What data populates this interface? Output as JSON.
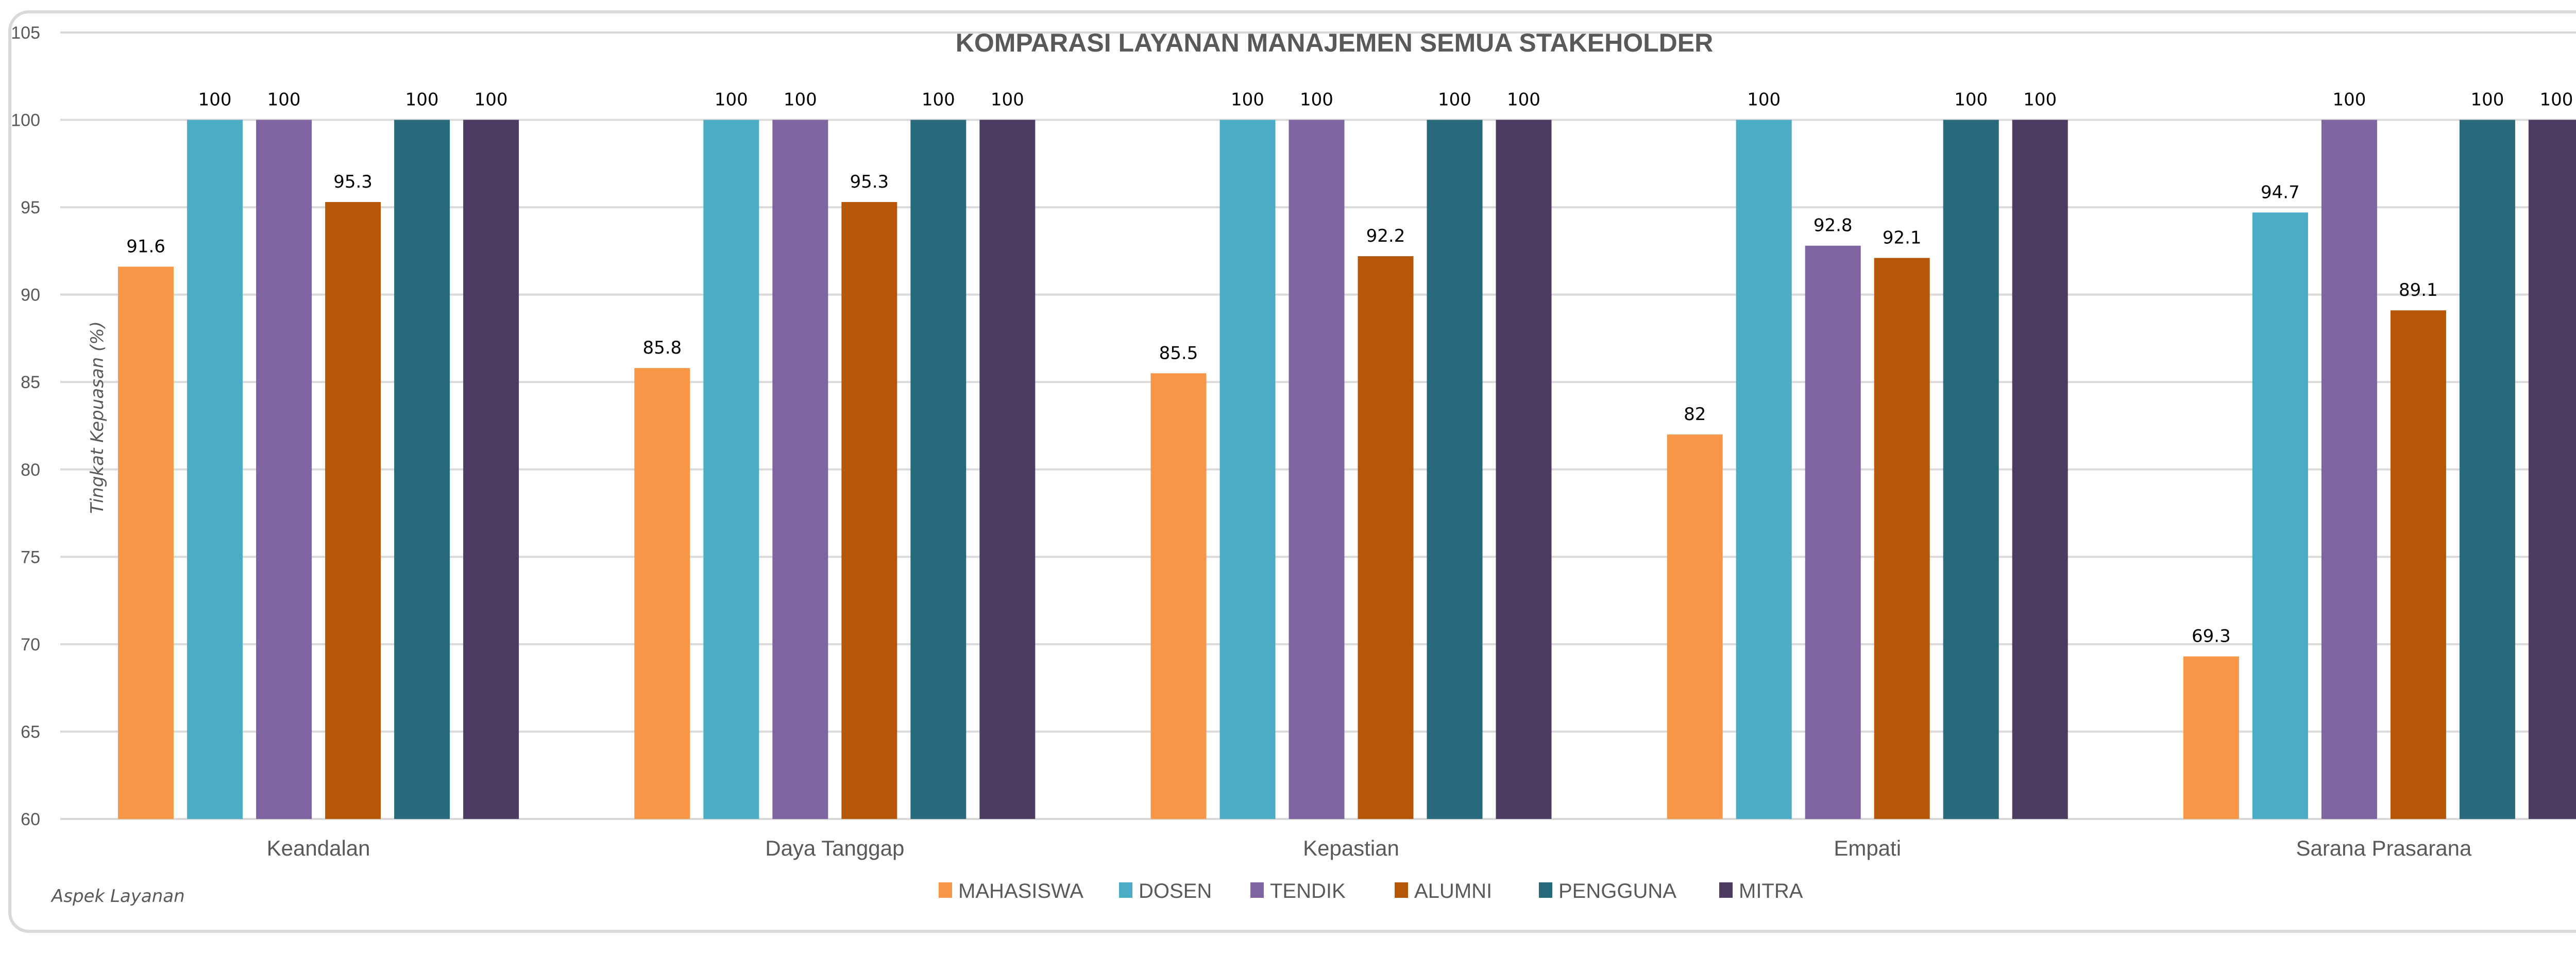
{
  "chart_data": {
    "type": "bar",
    "title": "KOMPARASI LAYANAN MANAJEMEN SEMUA STAKEHOLDER",
    "xlabel": "Aspek Layanan",
    "ylabel": "Tingkat Kepuasan (%)",
    "ylim": [
      60,
      105
    ],
    "yticks": [
      60,
      65,
      70,
      75,
      80,
      85,
      90,
      95,
      100,
      105
    ],
    "grid": true,
    "legend_position": "bottom",
    "categories": [
      "Keandalan",
      "Daya Tanggap",
      "Kepastian",
      "Empati",
      "Sarana Prasarana"
    ],
    "series": [
      {
        "name": "MAHASISWA",
        "color": "#F79646",
        "values": [
          91.6,
          85.8,
          85.5,
          82,
          69.3
        ]
      },
      {
        "name": "DOSEN",
        "color": "#4BACC6",
        "values": [
          100,
          100,
          100,
          100,
          94.7
        ]
      },
      {
        "name": "TENDIK",
        "color": "#8064A2",
        "values": [
          100,
          100,
          100,
          92.8,
          100
        ]
      },
      {
        "name": "ALUMNI",
        "color": "#B65708",
        "values": [
          95.3,
          95.3,
          92.2,
          92.1,
          89.1
        ]
      },
      {
        "name": "PENGGUNA",
        "color": "#276A7C",
        "values": [
          100,
          100,
          100,
          100,
          100
        ]
      },
      {
        "name": "MITRA",
        "color": "#4D3B62",
        "values": [
          100,
          100,
          100,
          100,
          100
        ]
      }
    ]
  },
  "colors": {
    "gridline": "#d9d9d9",
    "text": "#595959",
    "border": "#d9d9d9"
  }
}
